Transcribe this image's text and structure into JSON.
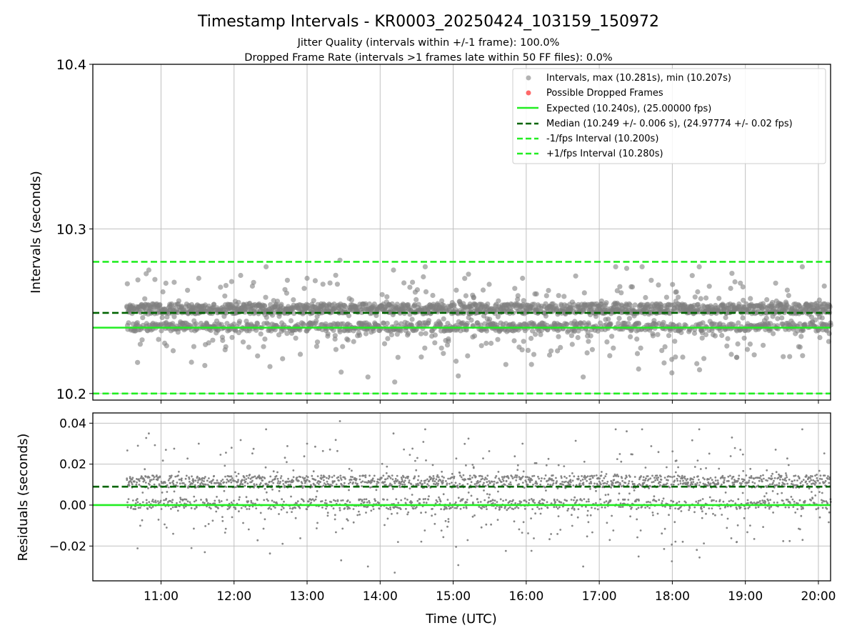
{
  "figure": {
    "title": "Timestamp Intervals - KR0003_20250424_103159_150972",
    "subtitle_1": "Jitter Quality (intervals within +/-1 frame): 100.0%",
    "subtitle_2": "Dropped Frame Rate (intervals >1 frames late within 50 FF files): 0.0%"
  },
  "chart_data": [
    {
      "type": "scatter",
      "ylabel": "Intervals (seconds)",
      "xlim": [
        "10:04",
        "20:10"
      ],
      "ylim": [
        10.196,
        10.4
      ],
      "yticks": [
        10.2,
        10.3,
        10.4
      ],
      "ytick_labels": [
        "10.2",
        "10.3",
        "10.4"
      ],
      "grid": true,
      "legend_position": "top-right",
      "legend": [
        {
          "label": "Intervals, max (10.281s), min (10.207s)",
          "marker": "gray-dot"
        },
        {
          "label": "Possible Dropped Frames",
          "marker": "red-dot"
        },
        {
          "label": "Expected (10.240s), (25.00000 fps)",
          "marker": "solid-line"
        },
        {
          "label": "Median (10.249 +/- 0.006 s), (24.97774 +/- 0.02 fps)",
          "marker": "dark-dashed-line"
        },
        {
          "label": "-1/fps Interval (10.200s)",
          "marker": "dashed-line"
        },
        {
          "label": "+1/fps Interval (10.280s)",
          "marker": "dashed-line"
        }
      ],
      "reference_lines": {
        "expected": 10.24,
        "median": 10.249,
        "minus_one_fps": 10.2,
        "plus_one_fps": 10.28
      },
      "series": [
        {
          "name": "Intervals",
          "x_range": [
            "10:32",
            "20:10"
          ],
          "expected": 10.24,
          "median": 10.249,
          "min": 10.207,
          "max": 10.281,
          "sample_points": [
            {
              "x": "10:32",
              "y": 10.253
            },
            {
              "x": "10:41",
              "y": 10.269
            },
            {
              "x": "10:50",
              "y": 10.275
            },
            {
              "x": "11:04",
              "y": 10.267
            },
            {
              "x": "11:10",
              "y": 10.226
            },
            {
              "x": "11:25",
              "y": 10.219
            },
            {
              "x": "11:31",
              "y": 10.27
            },
            {
              "x": "11:36",
              "y": 10.217
            },
            {
              "x": "11:58",
              "y": 10.268
            },
            {
              "x": "13:00",
              "y": 10.27
            },
            {
              "x": "13:27",
              "y": 10.281
            },
            {
              "x": "13:28",
              "y": 10.213
            },
            {
              "x": "13:50",
              "y": 10.21
            },
            {
              "x": "14:11",
              "y": 10.275
            },
            {
              "x": "14:12",
              "y": 10.207
            },
            {
              "x": "14:37",
              "y": 10.277
            },
            {
              "x": "15:57",
              "y": 10.27
            },
            {
              "x": "16:53",
              "y": 10.235
            },
            {
              "x": "18:49",
              "y": 10.273
            },
            {
              "x": "18:53",
              "y": 10.222
            },
            {
              "x": "19:47",
              "y": 10.223
            }
          ]
        },
        {
          "name": "Possible Dropped Frames",
          "values": []
        }
      ]
    },
    {
      "type": "scatter",
      "xlabel": "Time (UTC)",
      "ylabel": "Residuals (seconds)",
      "xlim": [
        "10:04",
        "20:10"
      ],
      "xticks": [
        "11:00",
        "12:00",
        "13:00",
        "14:00",
        "15:00",
        "16:00",
        "17:00",
        "18:00",
        "19:00",
        "20:00"
      ],
      "ylim": [
        -0.037,
        0.045
      ],
      "yticks": [
        -0.02,
        0.0,
        0.02,
        0.04
      ],
      "ytick_labels": [
        "−0.02",
        "0.00",
        "0.02",
        "0.04"
      ],
      "grid": true,
      "reference_lines": {
        "zero": 0.0,
        "median": 0.009
      },
      "series": [
        {
          "name": "Residuals",
          "x_range": [
            "10:32",
            "20:10"
          ],
          "min": -0.033,
          "max": 0.041,
          "sample_points": [
            {
              "x": "10:50",
              "y": 0.036
            },
            {
              "x": "11:25",
              "y": -0.021
            },
            {
              "x": "11:36",
              "y": -0.024
            },
            {
              "x": "13:27",
              "y": 0.041
            },
            {
              "x": "13:28",
              "y": -0.028
            },
            {
              "x": "13:50",
              "y": -0.03
            },
            {
              "x": "14:11",
              "y": 0.035
            },
            {
              "x": "14:12",
              "y": -0.033
            },
            {
              "x": "14:37",
              "y": 0.037
            },
            {
              "x": "18:49",
              "y": 0.033
            },
            {
              "x": "18:53",
              "y": -0.019
            },
            {
              "x": "19:47",
              "y": -0.018
            }
          ]
        }
      ]
    }
  ],
  "colors": {
    "points": "#808080",
    "dropped": "#ff4444",
    "expected_line": "#22ee22",
    "median_line": "#006400",
    "interval_lines": "#22ee22",
    "grid": "#c0c0c0"
  }
}
